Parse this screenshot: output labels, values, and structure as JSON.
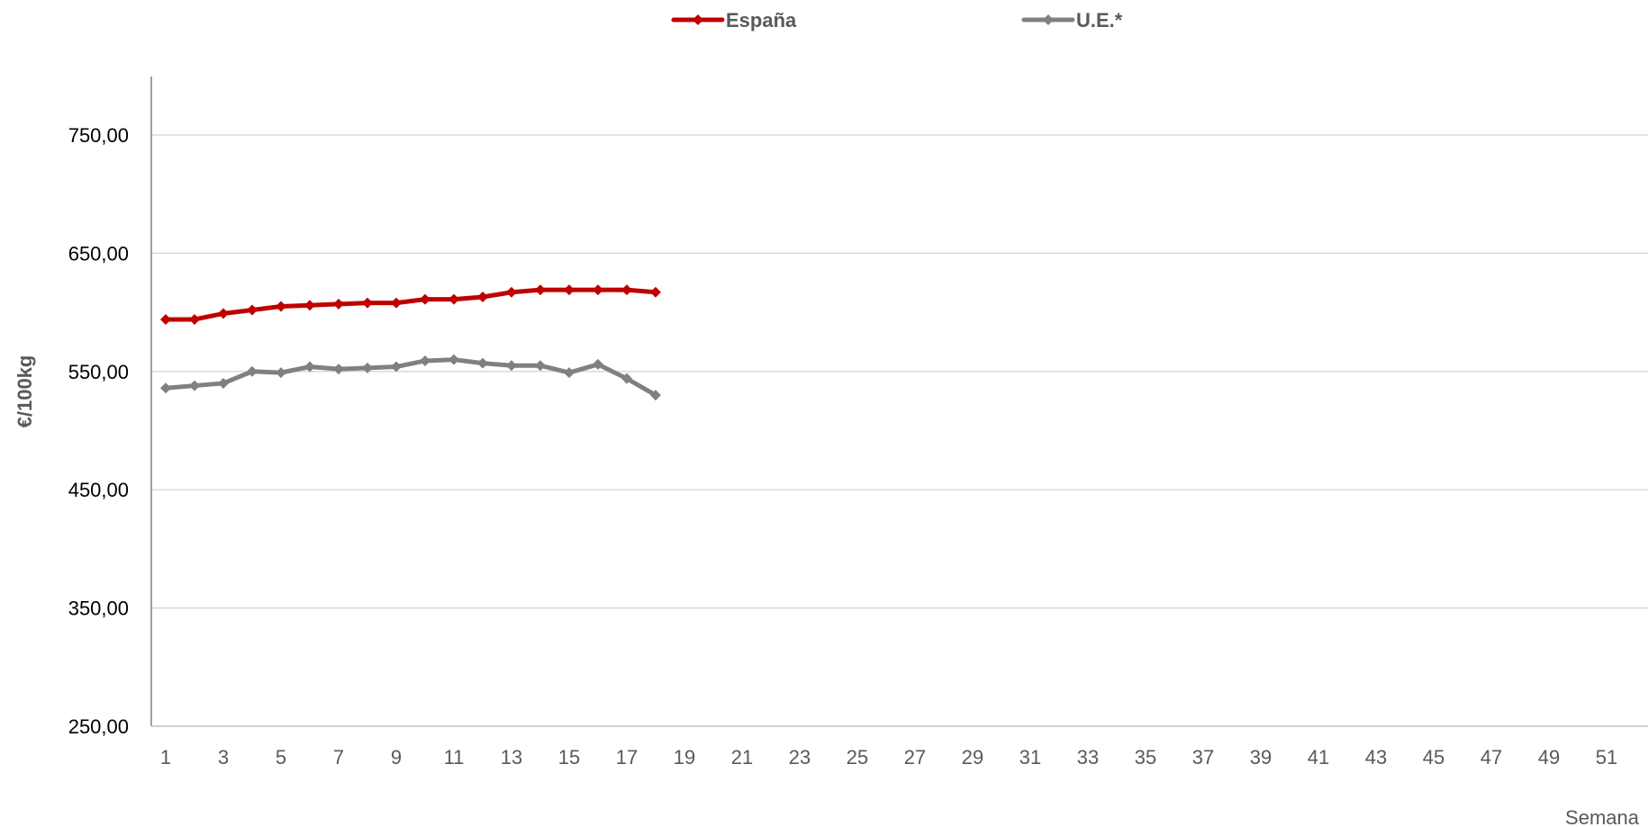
{
  "chart_data": {
    "type": "line",
    "title": "",
    "xlabel": "Semana",
    "ylabel": "€/100kg",
    "x": [
      1,
      2,
      3,
      4,
      5,
      6,
      7,
      8,
      9,
      10,
      11,
      12,
      13,
      14,
      15,
      16,
      17,
      18
    ],
    "x_tick_labels": [
      "1",
      "3",
      "5",
      "7",
      "9",
      "11",
      "13",
      "15",
      "17",
      "19",
      "21",
      "23",
      "25",
      "27",
      "29",
      "31",
      "33",
      "35",
      "37",
      "39",
      "41",
      "43",
      "45",
      "47",
      "49",
      "51"
    ],
    "xlim": [
      1,
      52
    ],
    "ylim": [
      250,
      750
    ],
    "y_tick_values": [
      250,
      350,
      450,
      550,
      650,
      750
    ],
    "y_tick_labels": [
      "250,00",
      "350,00",
      "450,00",
      "550,00",
      "650,00",
      "750,00"
    ],
    "grid": true,
    "legend_position": "top",
    "series": [
      {
        "name": "España",
        "color": "#C00000",
        "marker": "diamond",
        "values": [
          594,
          594,
          599,
          602,
          605,
          606,
          607,
          608,
          608,
          611,
          611,
          613,
          617,
          619,
          619,
          619,
          619,
          617
        ]
      },
      {
        "name": "U.E.*",
        "color": "#808080",
        "marker": "diamond",
        "values": [
          536,
          538,
          540,
          550,
          549,
          554,
          552,
          553,
          554,
          559,
          560,
          557,
          555,
          555,
          549,
          556,
          544,
          530
        ]
      }
    ]
  }
}
